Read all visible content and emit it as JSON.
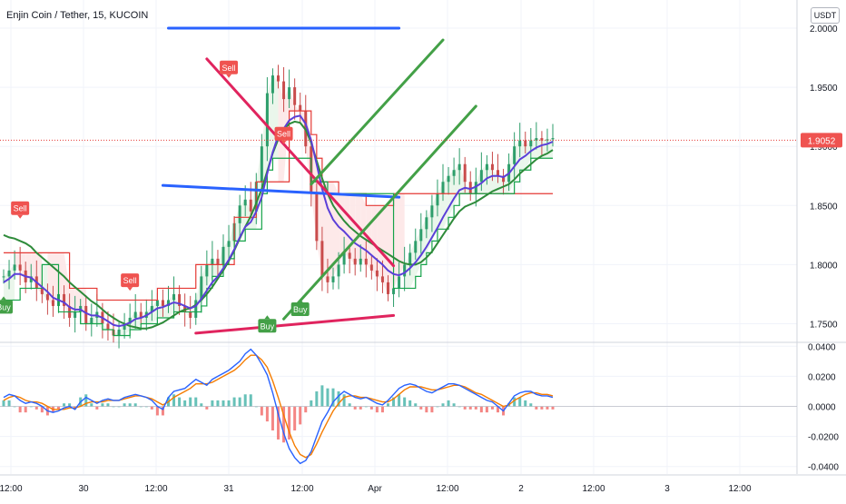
{
  "header": {
    "title": "Enjin Coin / Tether, 15, KUCOIN",
    "currency": "USDT"
  },
  "colors": {
    "price": "#5b3fd8",
    "ma_green": "#2e8b3a",
    "supertrend_up": "#16a34a",
    "supertrend_down": "#e53935",
    "candle": "#2e9e6b",
    "trend_red": "#e0245e",
    "trend_blue": "#2962ff",
    "trend_green": "#43a047",
    "macd": "#2962ff",
    "signal": "#f57c00",
    "hist_up": "#26a69a",
    "hist_down": "#ef5350"
  },
  "chart_data": [
    {
      "type": "line",
      "title": "Enjin Coin / Tether, 15, KUCOIN",
      "ylim": [
        1.735,
        2.01
      ],
      "y_ticks": [
        "2.0000",
        "1.9500",
        "1.9000",
        "1.8500",
        "1.8000",
        "1.7500"
      ],
      "y_tick_values": [
        2.0,
        1.95,
        1.9,
        1.85,
        1.8,
        1.75
      ],
      "x_ticks": [
        "12:00",
        "30",
        "12:00",
        "31",
        "12:00",
        "Apr",
        "12:00",
        "2",
        "12:00",
        "3",
        "12:00"
      ],
      "last_price_label": "1.9052",
      "last_price": 1.9052,
      "series": [
        {
          "values": [
            1.79,
            1.795,
            1.8,
            1.795,
            1.785,
            1.79,
            1.78,
            1.775,
            1.77,
            1.765,
            1.775,
            1.765,
            1.755,
            1.76,
            1.765,
            1.75,
            1.755,
            1.76,
            1.75,
            1.745,
            1.74,
            1.745,
            1.75,
            1.755,
            1.76,
            1.755,
            1.76,
            1.765,
            1.77,
            1.765,
            1.77,
            1.775,
            1.765,
            1.76,
            1.755,
            1.77,
            1.79,
            1.8,
            1.805,
            1.8,
            1.815,
            1.82,
            1.835,
            1.85,
            1.855,
            1.845,
            1.87,
            1.9,
            1.945,
            1.96,
            1.955,
            1.94,
            1.95,
            1.935,
            1.93,
            1.9,
            1.86,
            1.82,
            1.79,
            1.785,
            1.79,
            1.8,
            1.81,
            1.805,
            1.8,
            1.805,
            1.8,
            1.795,
            1.79,
            1.785,
            1.775,
            1.78,
            1.79,
            1.8,
            1.81,
            1.82,
            1.83,
            1.84,
            1.85,
            1.86,
            1.87,
            1.875,
            1.88,
            1.885,
            1.87,
            1.86,
            1.87,
            1.88,
            1.885,
            1.88,
            1.875,
            1.87,
            1.885,
            1.9,
            1.905,
            1.9,
            1.905,
            1.907,
            1.905,
            1.906,
            1.907
          ]
        },
        {
          "values": [
            1.785,
            1.788,
            1.792,
            1.792,
            1.79,
            1.789,
            1.785,
            1.781,
            1.777,
            1.772,
            1.77,
            1.768,
            1.764,
            1.762,
            1.762,
            1.759,
            1.757,
            1.757,
            1.755,
            1.752,
            1.749,
            1.748,
            1.749,
            1.751,
            1.754,
            1.755,
            1.757,
            1.76,
            1.763,
            1.764,
            1.766,
            1.768,
            1.767,
            1.765,
            1.763,
            1.765,
            1.771,
            1.778,
            1.785,
            1.79,
            1.797,
            1.804,
            1.813,
            1.823,
            1.832,
            1.836,
            1.845,
            1.857,
            1.877,
            1.895,
            1.909,
            1.915,
            1.922,
            1.925,
            1.926,
            1.919,
            1.905,
            1.885,
            1.864,
            1.848,
            1.838,
            1.832,
            1.828,
            1.823,
            1.818,
            1.815,
            1.812,
            1.808,
            1.804,
            1.8,
            1.795,
            1.792,
            1.791,
            1.793,
            1.797,
            1.802,
            1.808,
            1.815,
            1.823,
            1.831,
            1.84,
            1.848,
            1.856,
            1.863,
            1.865,
            1.864,
            1.866,
            1.869,
            1.873,
            1.875,
            1.875,
            1.874,
            1.877,
            1.883,
            1.889,
            1.892,
            1.896,
            1.899,
            1.901,
            1.902,
            1.904
          ]
        },
        {
          "values": [
            1.77,
            1.77,
            1.77,
            1.78,
            1.78,
            1.78,
            1.78,
            1.8,
            1.8,
            1.8,
            1.76,
            1.76,
            1.76,
            1.76,
            1.75,
            1.75,
            1.75,
            1.75,
            1.745,
            1.745,
            1.74,
            1.74,
            1.74,
            1.745,
            1.745,
            1.75,
            1.75,
            1.75,
            1.755,
            1.755,
            1.755,
            1.76,
            1.76,
            1.76,
            1.76,
            1.76,
            1.765,
            1.78,
            1.79,
            1.79,
            1.8,
            1.805,
            1.82,
            1.82,
            1.83,
            1.83,
            1.83,
            1.86,
            1.88,
            1.89,
            1.89,
            1.89,
            1.89,
            1.89,
            1.89,
            1.89,
            1.87,
            1.87,
            1.87,
            1.86,
            1.86,
            1.86,
            1.86,
            1.86,
            1.86,
            1.86,
            1.86,
            1.86,
            1.86,
            1.86,
            1.86,
            1.78,
            1.78,
            1.78,
            1.78,
            1.79,
            1.8,
            1.81,
            1.82,
            1.83,
            1.83,
            1.84,
            1.85,
            1.86,
            1.86,
            1.86,
            1.86,
            1.86,
            1.86,
            1.86,
            1.86,
            1.86,
            1.86,
            1.87,
            1.88,
            1.88,
            1.89,
            1.89,
            1.89,
            1.89,
            1.89
          ]
        },
        {
          "values": [
            1.81,
            1.81,
            1.81,
            1.81,
            1.81,
            1.81,
            1.81,
            1.81,
            1.81,
            1.81,
            1.81,
            1.81,
            1.78,
            1.78,
            1.78,
            1.78,
            1.78,
            1.77,
            1.77,
            1.77,
            1.77,
            1.77,
            1.77,
            1.77,
            1.77,
            1.77,
            1.77,
            1.77,
            1.78,
            1.78,
            1.78,
            1.78,
            1.78,
            1.78,
            1.78,
            1.8,
            1.8,
            1.8,
            1.8,
            1.8,
            1.8,
            1.8,
            1.84,
            1.84,
            1.84,
            1.84,
            1.87,
            1.87,
            1.87,
            1.87,
            1.87,
            1.87,
            1.93,
            1.93,
            1.93,
            1.93,
            1.91,
            1.89,
            1.87,
            1.87,
            1.87,
            1.86,
            1.86,
            1.86,
            1.86,
            1.86,
            1.85,
            1.85,
            1.85,
            1.85,
            1.85,
            1.86,
            1.86,
            1.86,
            1.86,
            1.86,
            1.86,
            1.86,
            1.86,
            1.86,
            1.86,
            1.86,
            1.86,
            1.86,
            1.86,
            1.86,
            1.86,
            1.86,
            1.86,
            1.86,
            1.86,
            1.86,
            1.86,
            1.86,
            1.86,
            1.86,
            1.86,
            1.86,
            1.86,
            1.86,
            1.86
          ]
        },
        {
          "values": [
            1.825,
            1.823,
            1.822,
            1.82,
            1.818,
            1.815,
            1.81,
            1.806,
            1.802,
            1.798,
            1.794,
            1.79,
            1.785,
            1.781,
            1.777,
            1.773,
            1.769,
            1.766,
            1.762,
            1.758,
            1.755,
            1.752,
            1.75,
            1.748,
            1.747,
            1.746,
            1.746,
            1.747,
            1.749,
            1.751,
            1.754,
            1.757,
            1.76,
            1.762,
            1.763,
            1.766,
            1.77,
            1.775,
            1.781,
            1.788,
            1.795,
            1.803,
            1.812,
            1.822,
            1.832,
            1.841,
            1.852,
            1.864,
            1.879,
            1.894,
            1.906,
            1.914,
            1.919,
            1.921,
            1.92,
            1.914,
            1.903,
            1.888,
            1.873,
            1.86,
            1.85,
            1.843,
            1.837,
            1.832,
            1.828,
            1.824,
            1.821,
            1.818,
            1.815,
            1.812,
            1.809,
            1.806,
            1.803,
            1.801,
            1.8,
            1.8,
            1.802,
            1.806,
            1.811,
            1.818,
            1.825,
            1.832,
            1.839,
            1.845,
            1.849,
            1.851,
            1.853,
            1.856,
            1.859,
            1.862,
            1.864,
            1.866,
            1.868,
            1.872,
            1.877,
            1.881,
            1.885,
            1.889,
            1.892,
            1.894,
            1.897
          ]
        }
      ],
      "annotations": [
        {
          "text": "Sell",
          "x": 3,
          "y": 1.842,
          "type": "sell"
        },
        {
          "text": "Buy",
          "x": 0,
          "y": 1.77,
          "type": "buy"
        },
        {
          "text": "Sell",
          "x": 23,
          "y": 1.781,
          "type": "sell"
        },
        {
          "text": "Sell",
          "x": 41,
          "y": 1.961,
          "type": "sell"
        },
        {
          "text": "Sell",
          "x": 51,
          "y": 1.905,
          "type": "sell"
        },
        {
          "text": "Buy",
          "x": 48,
          "y": 1.754,
          "type": "buy"
        },
        {
          "text": "Buy",
          "x": 54,
          "y": 1.768,
          "type": "buy"
        }
      ],
      "trendlines": [
        {
          "color": "#2962ff",
          "x1": 30,
          "y1": 2.0,
          "x2": 72,
          "y2": 2.0
        },
        {
          "color": "#2962ff",
          "x1": 29,
          "y1": 1.867,
          "x2": 72,
          "y2": 1.857
        },
        {
          "color": "#e0245e",
          "x1": 37,
          "y1": 1.974,
          "x2": 71,
          "y2": 1.799
        },
        {
          "color": "#e0245e",
          "x1": 35,
          "y1": 1.742,
          "x2": 71,
          "y2": 1.757
        },
        {
          "color": "#43a047",
          "x1": 51,
          "y1": 1.754,
          "x2": 86,
          "y2": 1.934
        },
        {
          "color": "#43a047",
          "x1": 56,
          "y1": 1.868,
          "x2": 80,
          "y2": 1.99
        }
      ]
    },
    {
      "type": "line",
      "title": "",
      "ylim": [
        -0.045,
        0.042
      ],
      "y_ticks": [
        "0.0400",
        "0.0200",
        "0.0000",
        "-0.0200",
        "-0.0400"
      ],
      "y_tick_values": [
        0.04,
        0.02,
        0.0,
        -0.02,
        -0.04
      ],
      "series": [
        {
          "values": [
            0.006,
            0.008,
            0.007,
            0.004,
            0.002,
            0.003,
            0.002,
            0.0,
            -0.003,
            -0.004,
            -0.003,
            -0.001,
            0.0,
            -0.002,
            0.003,
            0.006,
            0.004,
            0.002,
            0.004,
            0.005,
            0.004,
            0.004,
            0.006,
            0.007,
            0.008,
            0.007,
            0.006,
            0.004,
            0.0,
            -0.002,
            0.006,
            0.01,
            0.011,
            0.012,
            0.015,
            0.018,
            0.016,
            0.014,
            0.018,
            0.02,
            0.022,
            0.024,
            0.027,
            0.03,
            0.035,
            0.038,
            0.034,
            0.028,
            0.021,
            0.009,
            -0.005,
            -0.018,
            -0.028,
            -0.034,
            -0.038,
            -0.036,
            -0.03,
            -0.02,
            -0.01,
            -0.004,
            0.003,
            0.007,
            0.01,
            0.008,
            0.006,
            0.005,
            0.006,
            0.004,
            0.002,
            0.001,
            0.004,
            0.008,
            0.012,
            0.014,
            0.015,
            0.014,
            0.012,
            0.01,
            0.009,
            0.011,
            0.013,
            0.015,
            0.015,
            0.014,
            0.012,
            0.01,
            0.008,
            0.006,
            0.004,
            0.003,
            0.0,
            -0.003,
            0.002,
            0.007,
            0.009,
            0.01,
            0.01,
            0.008,
            0.007,
            0.007,
            0.006
          ]
        },
        {
          "values": [
            0.004,
            0.006,
            0.007,
            0.006,
            0.004,
            0.003,
            0.003,
            0.002,
            0.0,
            -0.002,
            -0.002,
            -0.002,
            -0.001,
            -0.001,
            0.0,
            0.002,
            0.003,
            0.003,
            0.003,
            0.004,
            0.004,
            0.004,
            0.005,
            0.006,
            0.007,
            0.007,
            0.006,
            0.005,
            0.003,
            0.001,
            0.003,
            0.006,
            0.008,
            0.01,
            0.012,
            0.015,
            0.015,
            0.015,
            0.016,
            0.018,
            0.02,
            0.022,
            0.024,
            0.027,
            0.031,
            0.034,
            0.034,
            0.031,
            0.026,
            0.017,
            0.006,
            -0.006,
            -0.017,
            -0.026,
            -0.032,
            -0.034,
            -0.032,
            -0.025,
            -0.017,
            -0.01,
            -0.003,
            0.002,
            0.006,
            0.007,
            0.007,
            0.006,
            0.006,
            0.005,
            0.004,
            0.003,
            0.003,
            0.005,
            0.008,
            0.011,
            0.013,
            0.013,
            0.013,
            0.012,
            0.011,
            0.011,
            0.012,
            0.013,
            0.014,
            0.014,
            0.013,
            0.011,
            0.009,
            0.008,
            0.006,
            0.004,
            0.002,
            0.0,
            0.001,
            0.004,
            0.006,
            0.008,
            0.009,
            0.009,
            0.008,
            0.008,
            0.007
          ]
        }
      ]
    }
  ]
}
